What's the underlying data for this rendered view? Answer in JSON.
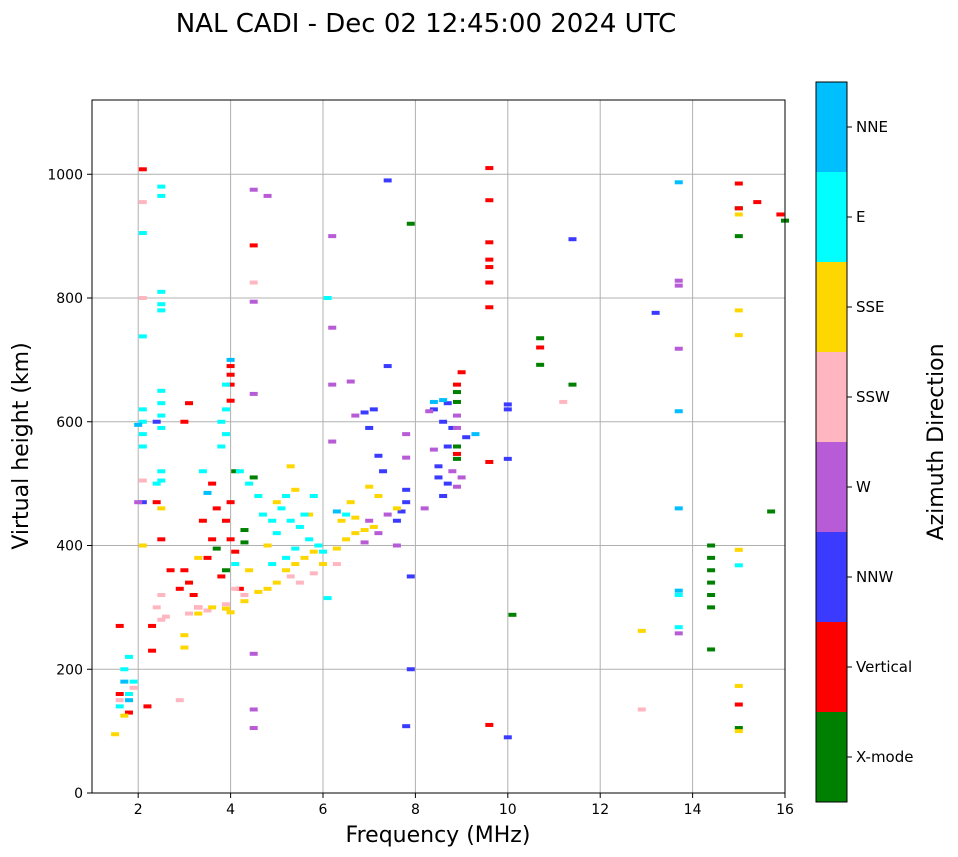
{
  "chart_data": {
    "type": "scatter",
    "title": "NAL CADI - Dec 02 12:45:00 2024 UTC",
    "xlabel": "Frequency (MHz)",
    "ylabel": "Virtual height (km)",
    "xlim": [
      1,
      16
    ],
    "ylim": [
      0,
      1120
    ],
    "xticks": [
      2,
      4,
      6,
      8,
      10,
      12,
      14,
      16
    ],
    "yticks": [
      0,
      200,
      400,
      600,
      800,
      1000
    ],
    "grid": true,
    "colorbar": {
      "label": "Azimuth Direction",
      "categories": [
        {
          "name": "X-mode",
          "color": "#008000"
        },
        {
          "name": "Vertical",
          "color": "#ff0000"
        },
        {
          "name": "NNW",
          "color": "#3b3bff"
        },
        {
          "name": "W",
          "color": "#b85bd6"
        },
        {
          "name": "SSW",
          "color": "#ffb6c1"
        },
        {
          "name": "SSE",
          "color": "#ffd700"
        },
        {
          "name": "E",
          "color": "#00ffff"
        },
        {
          "name": "NNE",
          "color": "#00bfff"
        }
      ]
    },
    "series": [
      {
        "name": "X-mode",
        "points": [
          [
            14.4,
            400
          ],
          [
            14.4,
            380
          ],
          [
            14.4,
            360
          ],
          [
            14.4,
            340
          ],
          [
            14.4,
            320
          ],
          [
            14.4,
            300
          ],
          [
            14.4,
            232
          ],
          [
            15.0,
            900
          ],
          [
            15.0,
            945
          ],
          [
            15.7,
            455
          ],
          [
            16.0,
            925
          ],
          [
            10.7,
            735
          ],
          [
            10.7,
            692
          ],
          [
            8.9,
            632
          ],
          [
            8.9,
            648
          ],
          [
            8.9,
            560
          ],
          [
            8.9,
            540
          ],
          [
            7.9,
            920
          ],
          [
            11.4,
            660
          ],
          [
            10.1,
            288
          ],
          [
            15.0,
            105
          ],
          [
            4.1,
            520
          ],
          [
            4.3,
            425
          ],
          [
            4.3,
            405
          ],
          [
            3.7,
            395
          ],
          [
            3.9,
            360
          ],
          [
            4.5,
            510
          ]
        ]
      },
      {
        "name": "Vertical",
        "points": [
          [
            15.0,
            985
          ],
          [
            15.4,
            955
          ],
          [
            15.9,
            935
          ],
          [
            15.0,
            945
          ],
          [
            15.0,
            143
          ],
          [
            9.6,
            1010
          ],
          [
            9.6,
            958
          ],
          [
            9.6,
            890
          ],
          [
            9.6,
            862
          ],
          [
            9.6,
            850
          ],
          [
            9.6,
            825
          ],
          [
            9.6,
            785
          ],
          [
            9.6,
            535
          ],
          [
            9.6,
            110
          ],
          [
            10.7,
            720
          ],
          [
            9.0,
            680
          ],
          [
            8.9,
            660
          ],
          [
            8.9,
            548
          ],
          [
            4.0,
            690
          ],
          [
            4.0,
            676
          ],
          [
            4.0,
            660
          ],
          [
            4.0,
            634
          ],
          [
            3.1,
            630
          ],
          [
            3.0,
            600
          ],
          [
            2.3,
            270
          ],
          [
            2.3,
            230
          ],
          [
            2.2,
            140
          ],
          [
            1.6,
            270
          ],
          [
            3.0,
            360
          ],
          [
            3.1,
            340
          ],
          [
            3.2,
            320
          ],
          [
            3.3,
            300
          ],
          [
            3.5,
            380
          ],
          [
            3.6,
            410
          ],
          [
            3.8,
            350
          ],
          [
            3.9,
            440
          ],
          [
            4.0,
            470
          ],
          [
            4.0,
            410
          ],
          [
            4.1,
            390
          ],
          [
            4.2,
            330
          ],
          [
            3.4,
            440
          ],
          [
            3.6,
            500
          ],
          [
            2.9,
            330
          ],
          [
            2.7,
            360
          ],
          [
            2.4,
            470
          ],
          [
            1.8,
            130
          ],
          [
            1.6,
            160
          ],
          [
            2.5,
            410
          ],
          [
            3.7,
            460
          ],
          [
            2.1,
            1008
          ],
          [
            4.5,
            885
          ]
        ]
      },
      {
        "name": "NNW",
        "points": [
          [
            7.4,
            990
          ],
          [
            8.7,
            630
          ],
          [
            8.6,
            600
          ],
          [
            8.7,
            560
          ],
          [
            8.5,
            528
          ],
          [
            8.5,
            510
          ],
          [
            8.7,
            500
          ],
          [
            8.6,
            480
          ],
          [
            7.8,
            490
          ],
          [
            7.8,
            470
          ],
          [
            7.7,
            455
          ],
          [
            7.9,
            350
          ],
          [
            7.9,
            200
          ],
          [
            7.8,
            108
          ],
          [
            10.0,
            90
          ],
          [
            10.0,
            540
          ],
          [
            10.0,
            628
          ],
          [
            10.0,
            620
          ],
          [
            11.4,
            895
          ],
          [
            13.2,
            776
          ],
          [
            7.4,
            690
          ],
          [
            7.1,
            620
          ],
          [
            6.9,
            615
          ],
          [
            7.0,
            590
          ],
          [
            7.3,
            520
          ],
          [
            7.6,
            440
          ],
          [
            2.4,
            600
          ],
          [
            2.1,
            470
          ],
          [
            9.1,
            575
          ],
          [
            8.4,
            620
          ],
          [
            8.8,
            590
          ],
          [
            7.2,
            545
          ]
        ]
      },
      {
        "name": "W",
        "points": [
          [
            13.7,
            828
          ],
          [
            13.7,
            820
          ],
          [
            13.7,
            718
          ],
          [
            13.7,
            258
          ],
          [
            6.2,
            900
          ],
          [
            6.2,
            752
          ],
          [
            6.2,
            660
          ],
          [
            6.2,
            568
          ],
          [
            6.6,
            665
          ],
          [
            6.7,
            610
          ],
          [
            7.8,
            580
          ],
          [
            7.8,
            542
          ],
          [
            8.3,
            617
          ],
          [
            8.9,
            610
          ],
          [
            8.9,
            590
          ],
          [
            9.0,
            510
          ],
          [
            8.9,
            495
          ],
          [
            8.8,
            520
          ],
          [
            8.2,
            460
          ],
          [
            7.6,
            400
          ],
          [
            7.4,
            450
          ],
          [
            7.2,
            420
          ],
          [
            7.0,
            440
          ],
          [
            6.9,
            405
          ],
          [
            4.8,
            965
          ],
          [
            4.5,
            975
          ],
          [
            4.5,
            794
          ],
          [
            4.5,
            645
          ],
          [
            4.5,
            225
          ],
          [
            4.5,
            135
          ],
          [
            4.5,
            105
          ],
          [
            2.0,
            470
          ],
          [
            8.4,
            555
          ]
        ]
      },
      {
        "name": "SSW",
        "points": [
          [
            2.1,
            955
          ],
          [
            2.1,
            800
          ],
          [
            2.1,
            505
          ],
          [
            11.2,
            632
          ],
          [
            12.9,
            135
          ],
          [
            2.5,
            320
          ],
          [
            2.4,
            300
          ],
          [
            2.5,
            280
          ],
          [
            2.6,
            285
          ],
          [
            3.3,
            300
          ],
          [
            3.5,
            295
          ],
          [
            3.9,
            305
          ],
          [
            4.1,
            330
          ],
          [
            4.3,
            320
          ],
          [
            5.3,
            350
          ],
          [
            5.5,
            340
          ],
          [
            5.8,
            355
          ],
          [
            1.6,
            150
          ],
          [
            1.9,
            170
          ],
          [
            2.9,
            150
          ],
          [
            4.5,
            825
          ],
          [
            3.1,
            290
          ],
          [
            6.3,
            370
          ]
        ]
      },
      {
        "name": "SSE",
        "points": [
          [
            15.0,
            935
          ],
          [
            15.0,
            780
          ],
          [
            15.0,
            740
          ],
          [
            15.0,
            393
          ],
          [
            15.0,
            173
          ],
          [
            15.0,
            100
          ],
          [
            12.9,
            262
          ],
          [
            5.3,
            528
          ],
          [
            3.0,
            255
          ],
          [
            3.0,
            235
          ],
          [
            3.3,
            290
          ],
          [
            3.6,
            300
          ],
          [
            3.9,
            298
          ],
          [
            4.0,
            292
          ],
          [
            4.3,
            310
          ],
          [
            4.6,
            325
          ],
          [
            4.8,
            330
          ],
          [
            5.0,
            340
          ],
          [
            5.2,
            360
          ],
          [
            5.4,
            370
          ],
          [
            5.6,
            380
          ],
          [
            5.8,
            390
          ],
          [
            6.0,
            370
          ],
          [
            6.3,
            395
          ],
          [
            6.5,
            410
          ],
          [
            6.7,
            420
          ],
          [
            6.9,
            425
          ],
          [
            7.1,
            430
          ],
          [
            6.4,
            440
          ],
          [
            6.6,
            470
          ],
          [
            7.0,
            495
          ],
          [
            7.2,
            480
          ],
          [
            7.6,
            460
          ],
          [
            5.0,
            470
          ],
          [
            5.4,
            490
          ],
          [
            5.7,
            450
          ],
          [
            4.8,
            400
          ],
          [
            4.4,
            360
          ],
          [
            1.5,
            95
          ],
          [
            1.7,
            125
          ],
          [
            2.1,
            400
          ],
          [
            2.5,
            460
          ],
          [
            3.3,
            380
          ],
          [
            6.7,
            445
          ]
        ]
      },
      {
        "name": "E",
        "points": [
          [
            2.5,
            980
          ],
          [
            2.5,
            965
          ],
          [
            2.5,
            810
          ],
          [
            2.5,
            790
          ],
          [
            2.5,
            780
          ],
          [
            2.5,
            650
          ],
          [
            2.5,
            630
          ],
          [
            2.5,
            610
          ],
          [
            2.5,
            590
          ],
          [
            2.5,
            520
          ],
          [
            2.5,
            505
          ],
          [
            2.1,
            905
          ],
          [
            2.1,
            738
          ],
          [
            2.1,
            620
          ],
          [
            2.1,
            600
          ],
          [
            2.1,
            580
          ],
          [
            2.1,
            560
          ],
          [
            6.1,
            800
          ],
          [
            6.1,
            315
          ],
          [
            3.9,
            660
          ],
          [
            3.9,
            620
          ],
          [
            3.8,
            600
          ],
          [
            3.9,
            580
          ],
          [
            3.8,
            560
          ],
          [
            4.2,
            520
          ],
          [
            4.4,
            500
          ],
          [
            4.6,
            480
          ],
          [
            4.7,
            450
          ],
          [
            4.9,
            440
          ],
          [
            5.0,
            420
          ],
          [
            5.1,
            460
          ],
          [
            5.2,
            480
          ],
          [
            5.3,
            440
          ],
          [
            5.5,
            430
          ],
          [
            5.6,
            450
          ],
          [
            5.7,
            410
          ],
          [
            5.8,
            480
          ],
          [
            5.9,
            400
          ],
          [
            6.0,
            390
          ],
          [
            5.4,
            395
          ],
          [
            5.2,
            380
          ],
          [
            4.9,
            370
          ],
          [
            13.7,
            320
          ],
          [
            13.7,
            268
          ],
          [
            15.0,
            368
          ],
          [
            1.7,
            200
          ],
          [
            1.8,
            220
          ],
          [
            1.9,
            180
          ],
          [
            1.6,
            140
          ],
          [
            2.4,
            500
          ],
          [
            3.4,
            520
          ],
          [
            4.1,
            370
          ],
          [
            1.8,
            160
          ],
          [
            6.5,
            450
          ]
        ]
      },
      {
        "name": "NNE",
        "points": [
          [
            13.7,
            987
          ],
          [
            13.7,
            617
          ],
          [
            13.7,
            460
          ],
          [
            13.7,
            327
          ],
          [
            9.3,
            580
          ],
          [
            8.4,
            632
          ],
          [
            8.6,
            635
          ],
          [
            1.8,
            150
          ],
          [
            1.7,
            180
          ],
          [
            2.0,
            595
          ],
          [
            3.5,
            485
          ],
          [
            4.0,
            700
          ],
          [
            6.3,
            455
          ]
        ]
      }
    ]
  }
}
